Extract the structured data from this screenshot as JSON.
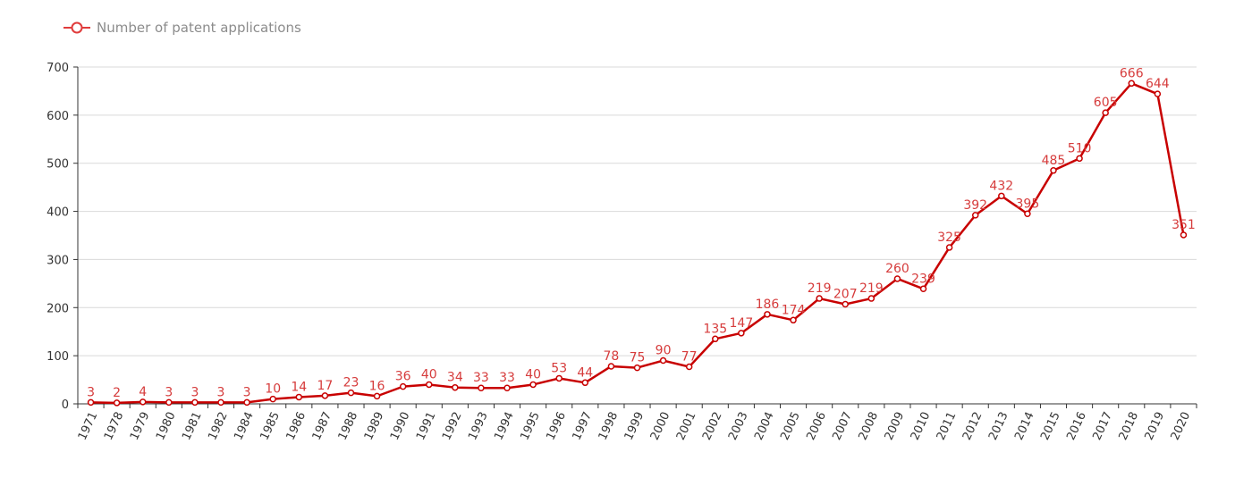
{
  "chart_data": {
    "type": "line",
    "title": "",
    "xlabel": "",
    "ylabel": "",
    "legend": {
      "entries": [
        "Number of patent applications"
      ],
      "placement": "top-left"
    },
    "ylim": [
      0,
      700
    ],
    "yticks": [
      0,
      100,
      200,
      300,
      400,
      500,
      600,
      700
    ],
    "grid": true,
    "categories": [
      "1971",
      "1978",
      "1979",
      "1980",
      "1981",
      "1982",
      "1984",
      "1985",
      "1986",
      "1987",
      "1988",
      "1989",
      "1990",
      "1991",
      "1992",
      "1993",
      "1994",
      "1995",
      "1996",
      "1997",
      "1998",
      "1999",
      "2000",
      "2001",
      "2002",
      "2003",
      "2004",
      "2005",
      "2006",
      "2007",
      "2008",
      "2009",
      "2010",
      "2011",
      "2012",
      "2013",
      "2014",
      "2015",
      "2016",
      "2017",
      "2018",
      "2019",
      "2020"
    ],
    "series": [
      {
        "name": "Number of patent applications",
        "color": "#c80000",
        "label_color": "#d63c3c",
        "values": [
          3,
          2,
          4,
          3,
          3,
          3,
          3,
          10,
          14,
          17,
          23,
          16,
          36,
          40,
          34,
          33,
          33,
          40,
          53,
          44,
          78,
          75,
          90,
          77,
          135,
          147,
          186,
          174,
          219,
          207,
          219,
          260,
          239,
          325,
          392,
          432,
          395,
          485,
          510,
          605,
          666,
          644,
          351
        ]
      }
    ]
  }
}
